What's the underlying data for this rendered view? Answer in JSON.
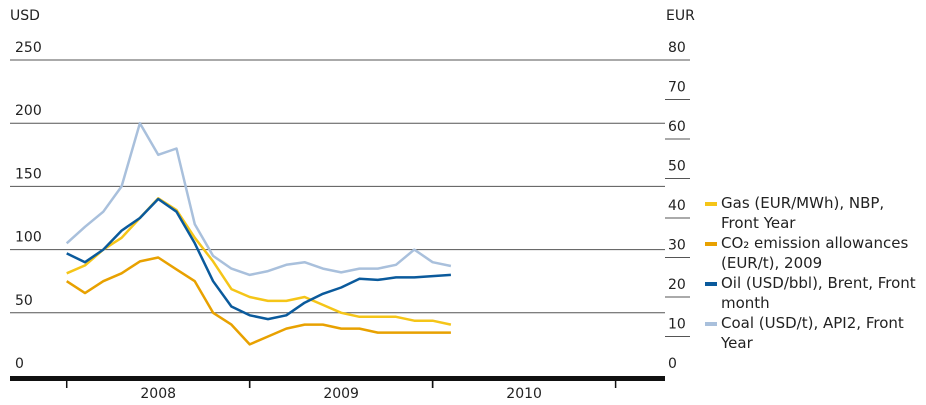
{
  "chart_data": {
    "type": "line",
    "y_label": "USD",
    "y2_label": "EUR",
    "x": [
      2008.0,
      2008.1,
      2008.2,
      2008.3,
      2008.4,
      2008.5,
      2008.6,
      2008.7,
      2008.8,
      2008.9,
      2009.0,
      2009.1,
      2009.2,
      2009.3,
      2009.4,
      2009.5,
      2009.6,
      2009.7,
      2009.8,
      2009.9,
      2010.0,
      2010.1
    ],
    "xlim": [
      2007.69,
      2011.27
    ],
    "xticks": [
      {
        "value": 2008.5,
        "label": "2008"
      },
      {
        "value": 2009.5,
        "label": "2009"
      },
      {
        "value": 2010.5,
        "label": "2010"
      }
    ],
    "ylim": [
      0,
      250
    ],
    "yticks": [
      0,
      50,
      100,
      150,
      200,
      250
    ],
    "y2lim": [
      0,
      80
    ],
    "y2ticks": [
      0,
      10,
      20,
      30,
      40,
      50,
      60,
      70,
      80
    ],
    "grid": true,
    "series": [
      {
        "name": "Gas (EUR/MWh), NBP, Front Year",
        "color": "#f5c518",
        "axis": "y2",
        "values": [
          26,
          28,
          32,
          35,
          40,
          45,
          42,
          35,
          29,
          22,
          20,
          19,
          19,
          20,
          18,
          16,
          15,
          15,
          15,
          14,
          14,
          13
        ]
      },
      {
        "name": "CO₂ emission allowances (EUR/t), 2009",
        "color": "#e8a100",
        "axis": "y2",
        "values": [
          24,
          21,
          24,
          26,
          29,
          30,
          27,
          24,
          16,
          13,
          8,
          10,
          12,
          13,
          13,
          12,
          12,
          11,
          11,
          11,
          11,
          11
        ]
      },
      {
        "name": "Oil (USD/bbl), Brent, Front month",
        "color": "#0a5a9c",
        "values": [
          97,
          90,
          100,
          115,
          125,
          140,
          130,
          105,
          75,
          55,
          48,
          45,
          48,
          58,
          65,
          70,
          77,
          76,
          78,
          78,
          79,
          80
        ]
      },
      {
        "name": "Coal (USD/t), API2, Front Year",
        "color": "#a9c0dc",
        "values": [
          105,
          118,
          130,
          150,
          200,
          175,
          180,
          120,
          95,
          85,
          80,
          83,
          88,
          90,
          85,
          82,
          85,
          85,
          88,
          100,
          90,
          87
        ]
      }
    ]
  }
}
